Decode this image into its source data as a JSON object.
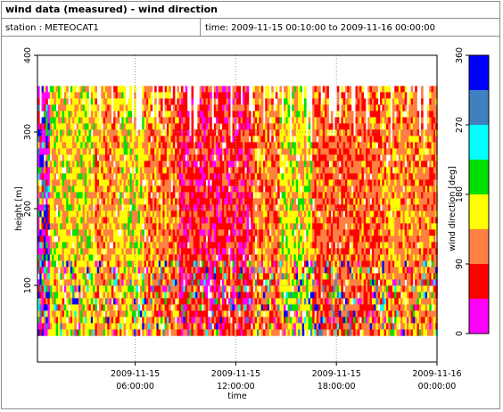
{
  "header": {
    "title": "wind data (measured) - wind direction",
    "station": "station : METEOCAT1",
    "time_range": "time: 2009-11-15 00:10:00 to 2009-11-16 00:00:00"
  },
  "chart_data": {
    "type": "heatmap",
    "title": "wind data (measured) - wind direction",
    "xlabel": "time",
    "ylabel": "height [m]",
    "colorbar_label": "wind direction [deg]",
    "x_ticks": [
      {
        "line1": "2009-11-15",
        "line2": "06:00:00",
        "hour": 6
      },
      {
        "line1": "2009-11-15",
        "line2": "12:00:00",
        "hour": 12
      },
      {
        "line1": "2009-11-15",
        "line2": "18:00:00",
        "hour": 18
      },
      {
        "line1": "2009-11-16",
        "line2": "00:00:00",
        "hour": 24
      }
    ],
    "xlim_hours": [
      0.17,
      24
    ],
    "y_ticks": [
      100,
      200,
      300,
      400
    ],
    "ylim": [
      0,
      400
    ],
    "data_height_range": [
      35,
      360
    ],
    "grid": true,
    "colorbar": {
      "ticks": [
        0,
        90,
        180,
        270,
        360
      ],
      "bins": [
        {
          "from": 0,
          "to": 45,
          "color": "#ff00ff"
        },
        {
          "from": 45,
          "to": 90,
          "color": "#ff0000"
        },
        {
          "from": 90,
          "to": 135,
          "color": "#ff8040"
        },
        {
          "from": 135,
          "to": 180,
          "color": "#ffff00"
        },
        {
          "from": 180,
          "to": 225,
          "color": "#00e000"
        },
        {
          "from": 225,
          "to": 270,
          "color": "#00ffff"
        },
        {
          "from": 270,
          "to": 315,
          "color": "#4080c0"
        },
        {
          "from": 315,
          "to": 360,
          "color": "#0000ff"
        }
      ]
    },
    "time_blocks": [
      {
        "from": 0.17,
        "to": 0.8,
        "dominant_deg": 20
      },
      {
        "from": 0.8,
        "to": 3.5,
        "dominant_deg": 150
      },
      {
        "from": 3.5,
        "to": 5.0,
        "dominant_deg": 120
      },
      {
        "from": 5.0,
        "to": 6.5,
        "dominant_deg": 150
      },
      {
        "from": 6.5,
        "to": 8.5,
        "dominant_deg": 110
      },
      {
        "from": 8.5,
        "to": 11.5,
        "dominant_deg": 70
      },
      {
        "from": 11.5,
        "to": 13.0,
        "dominant_deg": 70
      },
      {
        "from": 13.0,
        "to": 14.5,
        "dominant_deg": 110
      },
      {
        "from": 14.5,
        "to": 16.5,
        "dominant_deg": 150
      },
      {
        "from": 16.5,
        "to": 20.5,
        "dominant_deg": 100
      },
      {
        "from": 20.5,
        "to": 22.8,
        "dominant_deg": 120
      },
      {
        "from": 22.8,
        "to": 24.0,
        "dominant_deg": 110
      }
    ]
  }
}
